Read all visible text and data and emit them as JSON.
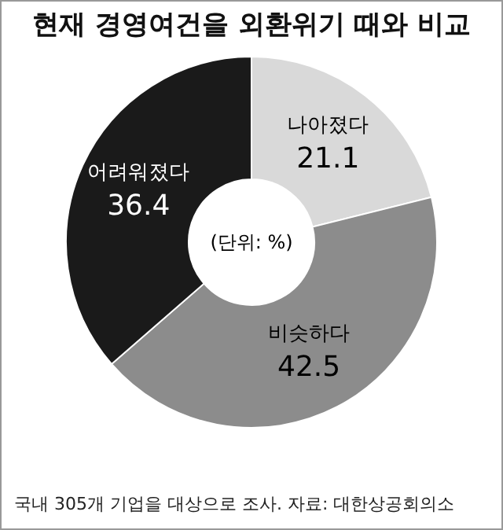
{
  "chart_data": {
    "type": "donut",
    "title": "현재 경영여건을 외환위기 때와 비교",
    "categories": [
      "나아졌다",
      "비슷하다",
      "어려워졌다"
    ],
    "values": [
      21.1,
      42.5,
      36.4
    ],
    "colors": [
      "#d9d9d9",
      "#8c8c8c",
      "#1a1a1a"
    ],
    "data_labels": true,
    "legend": false,
    "annotations": [
      "(단위: %)",
      "국내 305개 기업을 대상으로 조사.  자료: 대한상공회의소"
    ]
  }
}
